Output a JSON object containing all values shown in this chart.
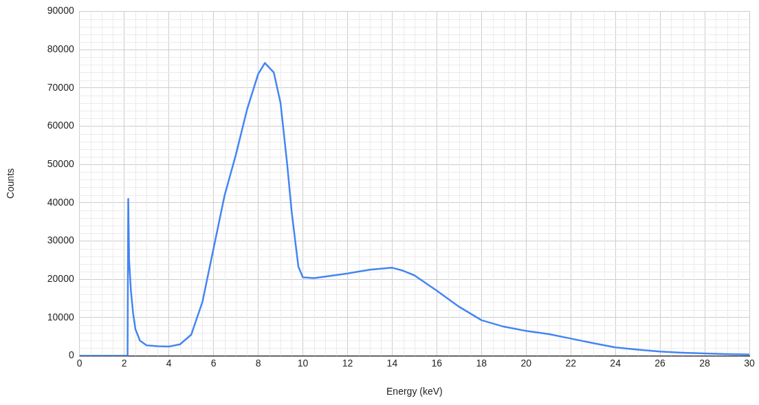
{
  "chart_data": {
    "type": "line",
    "xlabel": "Energy (keV)",
    "ylabel": "Counts",
    "xlim": [
      0,
      30
    ],
    "ylim": [
      0,
      90000
    ],
    "xticks": [
      0,
      2,
      4,
      6,
      8,
      10,
      12,
      14,
      16,
      18,
      20,
      22,
      24,
      26,
      28,
      30
    ],
    "yticks": [
      0,
      10000,
      20000,
      30000,
      40000,
      50000,
      60000,
      70000,
      80000,
      90000
    ],
    "grid": true,
    "legend": false,
    "marker": "none",
    "line_style": "solid",
    "series": [
      {
        "color": "#4285f4",
        "x": [
          0,
          1,
          2.1,
          2.15,
          2.18,
          2.22,
          2.3,
          2.4,
          2.5,
          2.7,
          3.0,
          3.5,
          4.0,
          4.5,
          5.0,
          5.5,
          6.0,
          6.5,
          7.0,
          7.5,
          8.0,
          8.3,
          8.7,
          9.0,
          9.3,
          9.5,
          9.8,
          10.0,
          10.5,
          11,
          12,
          13,
          14,
          14.5,
          15,
          16,
          17,
          18,
          19,
          20,
          21,
          22,
          23,
          24,
          25,
          26,
          27,
          28,
          29,
          30
        ],
        "values": [
          0,
          0,
          0,
          0,
          41000,
          25000,
          17000,
          11000,
          7000,
          4000,
          2700,
          2500,
          2400,
          3000,
          5500,
          14000,
          28000,
          42000,
          52500,
          64300,
          73600,
          76500,
          74000,
          66100,
          50000,
          37600,
          23300,
          20500,
          20300,
          20700,
          21500,
          22500,
          23000,
          22200,
          21000,
          17000,
          12800,
          9300,
          7600,
          6500,
          5700,
          4500,
          3300,
          2200,
          1600,
          1100,
          800,
          600,
          450,
          350
        ]
      }
    ]
  }
}
